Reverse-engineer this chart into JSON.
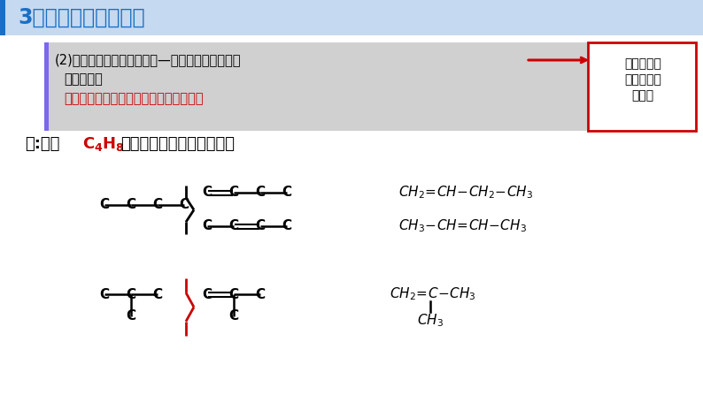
{
  "title": "3、同分异构体的书写",
  "title_color": "#1A6FC4",
  "title_bg": "#C5D9F1",
  "box_bg": "#C8C8C8",
  "box_accent_color": "#7B68EE",
  "box_line1": "(2)烯烃的同分异构体的书写—碳链异构和位置异构",
  "box_line2": "书写方法：",
  "box_line3": "先写出所有的碳链异构，再移动官能团。",
  "box_line3_color": "#CC0000",
  "side_box_text_line1": "官能团的位",
  "side_box_text_line2": "置不同引起",
  "side_box_text_line3": "的异构",
  "side_box_edge": "#CC0000",
  "arrow_color": "#CC0000",
  "example_prefix": "例:写出",
  "example_formula": "C₄H₈",
  "example_suffix": "的属于烯烃类的同分异构体",
  "formula_color": "#CC0000",
  "white_bg": "#FFFFFF",
  "black": "#000000",
  "brace_black": "#000000",
  "brace_red": "#CC0000"
}
